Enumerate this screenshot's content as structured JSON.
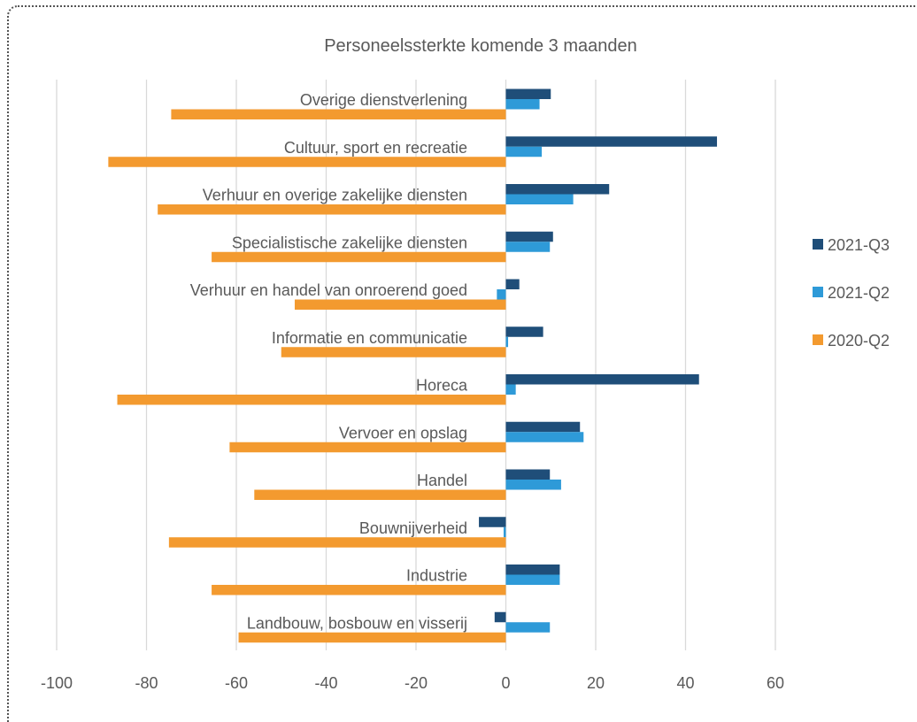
{
  "chart_data": {
    "type": "bar",
    "orientation": "horizontal",
    "title": "Personeelssterkte komende 3 maanden",
    "categories": [
      "Overige dienstverlening",
      "Cultuur, sport en recreatie",
      "Verhuur en overige zakelijke diensten",
      "Specialistische zakelijke diensten",
      "Verhuur en handel van onroerend goed",
      "Informatie en communicatie",
      "Horeca",
      "Vervoer en opslag",
      "Handel",
      "Bouwnijverheid",
      "Industrie",
      "Landbouw, bosbouw en visserij"
    ],
    "series": [
      {
        "name": "2021-Q3",
        "color": "#1f4e79",
        "values": [
          10,
          47,
          23,
          10.5,
          3,
          8.3,
          43,
          16.5,
          9.8,
          -6,
          12,
          -2.5
        ]
      },
      {
        "name": "2021-Q2",
        "color": "#2e9ad8",
        "values": [
          7.5,
          8,
          15,
          9.8,
          -2,
          0.5,
          2.2,
          17.3,
          12.3,
          -0.5,
          12,
          9.8
        ]
      },
      {
        "name": "2020-Q2",
        "color": "#f39a2f",
        "values": [
          -74.5,
          -88.5,
          -77.5,
          -65.5,
          -47,
          -50,
          -86.5,
          -61.5,
          -56,
          -75,
          -65.5,
          -59.5
        ]
      }
    ],
    "xlim": [
      -100,
      60
    ],
    "xticks": [
      "-100",
      "-80",
      "-60",
      "-40",
      "-20",
      "0",
      "20",
      "40",
      "60"
    ],
    "grid": true,
    "legend_position": "right"
  }
}
